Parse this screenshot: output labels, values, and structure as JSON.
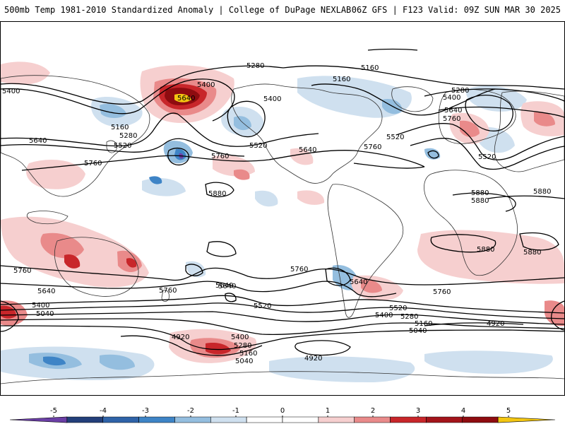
{
  "header": {
    "title_left": "500mb Temp 1981-2010 Standardized Anomaly | College of DuPage NEXLAB",
    "title_right": "06Z GFS | F123 Valid: 09Z SUN MAR 30 2025"
  },
  "colors": {
    "warm_light": "#f6cfcf",
    "warm_mid": "#e98a8a",
    "warm_strong": "#c8262a",
    "warm_max": "#8e0c10",
    "warm_extreme": "#f3c612",
    "cold_light": "#cfe0ef",
    "cold_mid": "#94bedf",
    "cold_strong": "#3e84c6",
    "cold_max": "#233f7a",
    "cold_extreme": "#6b3fa6",
    "coast": "#333333",
    "contour": "#000000"
  },
  "contour_labels": [
    {
      "id": "c1",
      "text": "5280"
    },
    {
      "id": "c2",
      "text": "5160"
    },
    {
      "id": "c3",
      "text": "5160"
    },
    {
      "id": "c4",
      "text": "5400"
    },
    {
      "id": "c5",
      "text": "5400"
    },
    {
      "id": "c6",
      "text": "5400"
    },
    {
      "id": "c7",
      "text": "5280"
    },
    {
      "id": "c8",
      "text": "5400"
    },
    {
      "id": "c9",
      "text": "5160"
    },
    {
      "id": "c10",
      "text": "5280"
    },
    {
      "id": "c11",
      "text": "5640"
    },
    {
      "id": "c12",
      "text": "5520"
    },
    {
      "id": "c13",
      "text": "5640"
    },
    {
      "id": "c14",
      "text": "5760"
    },
    {
      "id": "c15",
      "text": "5520"
    },
    {
      "id": "c16",
      "text": "5520"
    },
    {
      "id": "c17",
      "text": "5640"
    },
    {
      "id": "c18",
      "text": "5760"
    },
    {
      "id": "c19",
      "text": "5760"
    },
    {
      "id": "c20",
      "text": "5640"
    },
    {
      "id": "c21",
      "text": "5760"
    },
    {
      "id": "c22",
      "text": "5520"
    },
    {
      "id": "c23",
      "text": "5880"
    },
    {
      "id": "c24",
      "text": "5880"
    },
    {
      "id": "c25",
      "text": "5880"
    },
    {
      "id": "c26",
      "text": "5880"
    },
    {
      "id": "c27",
      "text": "5880"
    },
    {
      "id": "c28",
      "text": "5880"
    },
    {
      "id": "c29",
      "text": "5760"
    },
    {
      "id": "c30",
      "text": "5760"
    },
    {
      "id": "c31",
      "text": "5760"
    },
    {
      "id": "c32",
      "text": "5640"
    },
    {
      "id": "c33",
      "text": "5640"
    },
    {
      "id": "c34",
      "text": "5640"
    },
    {
      "id": "c35",
      "text": "5760"
    },
    {
      "id": "c36",
      "text": "5520"
    },
    {
      "id": "c37",
      "text": "5520"
    },
    {
      "id": "c38",
      "text": "5400"
    },
    {
      "id": "c39",
      "text": "5280"
    },
    {
      "id": "c40",
      "text": "5160"
    },
    {
      "id": "c41",
      "text": "5040"
    },
    {
      "id": "c42",
      "text": "4920"
    },
    {
      "id": "c43",
      "text": "5400"
    },
    {
      "id": "c44",
      "text": "5040"
    },
    {
      "id": "c45",
      "text": "4920"
    },
    {
      "id": "c46",
      "text": "5400"
    },
    {
      "id": "c47",
      "text": "5280"
    },
    {
      "id": "c48",
      "text": "5160"
    },
    {
      "id": "c49",
      "text": "5040"
    },
    {
      "id": "c50",
      "text": "4920"
    },
    {
      "id": "c51",
      "text": "5640"
    }
  ],
  "colorbar": {
    "labels": [
      "-5",
      "-4",
      "-3",
      "-2",
      "-1",
      "0",
      "1",
      "2",
      "3",
      "4",
      "5"
    ],
    "segments": [
      "#6b3fa6",
      "#233f7a",
      "#2f63a8",
      "#3e84c6",
      "#94bedf",
      "#cfe0ef",
      "#ffffff",
      "#ffffff",
      "#f6cfcf",
      "#e98a8a",
      "#c8262a",
      "#a3141a",
      "#8e0c10",
      "#f3c612"
    ]
  }
}
